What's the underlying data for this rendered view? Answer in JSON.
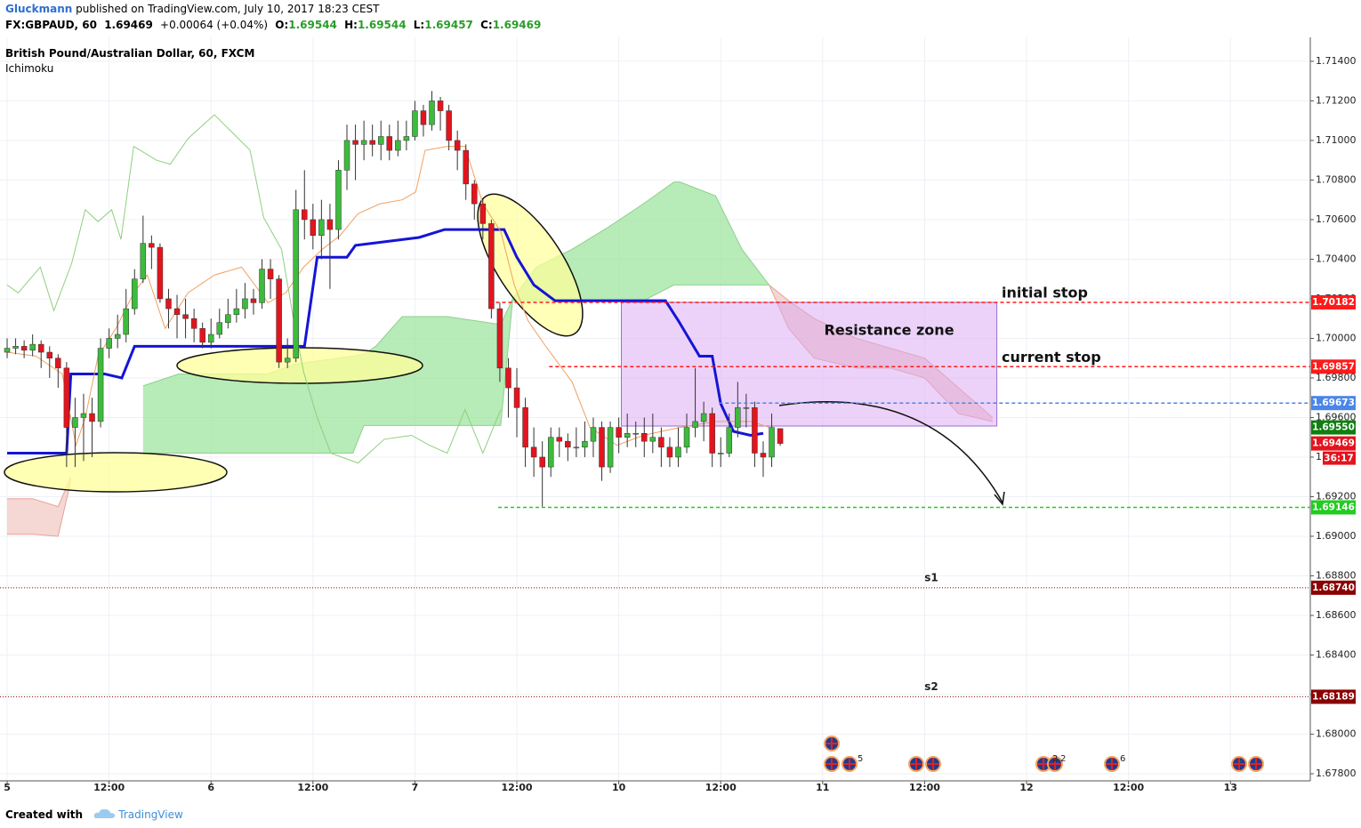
{
  "header": {
    "author": "Gluckmann",
    "published": "published on TradingView.com, July 10, 2017 18:23 CEST",
    "symbol": "FX:GBPAUD, 60",
    "last": "1.69469",
    "change": "+0.00064 (+0.04%)",
    "ohlc": [
      {
        "label": "O:",
        "value": "1.69544"
      },
      {
        "label": "H:",
        "value": "1.69544"
      },
      {
        "label": "L:",
        "value": "1.69457"
      },
      {
        "label": "C:",
        "value": "1.69469"
      }
    ]
  },
  "chart_data": {
    "type": "candlestick",
    "title": "British Pound/Australian Dollar, 60, FXCM",
    "indicator": "Ichimoku",
    "up_color": "#3dbb3d",
    "down_color": "#e3141e",
    "grid": true,
    "xlim": [
      -0.84,
      153.4
    ],
    "ylim": [
      1.67764,
      1.71521
    ],
    "xticks": [
      {
        "value": 0,
        "label": "5"
      },
      {
        "value": 12,
        "label": "12:00"
      },
      {
        "value": 24,
        "label": "6"
      },
      {
        "value": 36,
        "label": "12:00"
      },
      {
        "value": 48,
        "label": "7"
      },
      {
        "value": 60,
        "label": "12:00"
      },
      {
        "value": 72,
        "label": "10"
      },
      {
        "value": 84,
        "label": "12:00"
      },
      {
        "value": 96,
        "label": "11"
      },
      {
        "value": 108,
        "label": "12:00"
      },
      {
        "value": 120,
        "label": "12"
      },
      {
        "value": 132,
        "label": "12:00"
      },
      {
        "value": 144,
        "label": "13"
      }
    ],
    "yticks": [
      {
        "value": 1.678,
        "label": "1.67800"
      },
      {
        "value": 1.68,
        "label": "1.68000"
      },
      {
        "value": 1.682,
        "label": "1.68200"
      },
      {
        "value": 1.684,
        "label": "1.68400"
      },
      {
        "value": 1.686,
        "label": "1.68600"
      },
      {
        "value": 1.688,
        "label": "1.68800"
      },
      {
        "value": 1.69,
        "label": "1.69000"
      },
      {
        "value": 1.692,
        "label": "1.69200"
      },
      {
        "value": 1.694,
        "label": "1.69400"
      },
      {
        "value": 1.696,
        "label": "1.69600"
      },
      {
        "value": 1.698,
        "label": "1.69800"
      },
      {
        "value": 1.7,
        "label": "1.70000"
      },
      {
        "value": 1.702,
        "label": "1.70200"
      },
      {
        "value": 1.704,
        "label": "1.70400"
      },
      {
        "value": 1.706,
        "label": "1.70600"
      },
      {
        "value": 1.708,
        "label": "1.70800"
      },
      {
        "value": 1.71,
        "label": "1.71000"
      },
      {
        "value": 1.712,
        "label": "1.71200"
      },
      {
        "value": 1.714,
        "label": "1.71400"
      }
    ],
    "x": [
      0,
      1,
      2,
      3,
      4,
      5,
      6,
      7,
      8,
      9,
      10,
      11,
      12,
      13,
      14,
      15,
      16,
      17,
      18,
      19,
      20,
      21,
      22,
      23,
      24,
      25,
      26,
      27,
      28,
      29,
      30,
      31,
      32,
      33,
      34,
      35,
      36,
      37,
      38,
      39,
      40,
      41,
      42,
      43,
      44,
      45,
      46,
      47,
      48,
      49,
      50,
      51,
      52,
      53,
      54,
      55,
      56,
      57,
      58,
      59,
      60,
      61,
      62,
      63,
      64,
      65,
      66,
      67,
      68,
      69,
      70,
      71,
      72,
      73,
      74,
      75,
      76,
      77,
      78,
      79,
      80,
      81,
      82,
      83,
      84,
      85,
      86,
      87,
      88,
      89,
      90,
      91
    ],
    "open": [
      1.6993,
      1.6995,
      1.6996,
      1.6994,
      1.6997,
      1.6993,
      1.699,
      1.6985,
      1.6955,
      1.696,
      1.6962,
      1.6958,
      1.6995,
      1.7,
      1.7002,
      1.7015,
      1.703,
      1.7048,
      1.7046,
      1.702,
      1.7015,
      1.7012,
      1.701,
      1.7005,
      1.6998,
      1.7002,
      1.7008,
      1.7012,
      1.7015,
      1.702,
      1.7018,
      1.7035,
      1.703,
      1.6988,
      1.699,
      1.7065,
      1.706,
      1.7052,
      1.706,
      1.7055,
      1.7085,
      1.71,
      1.7098,
      1.71,
      1.7098,
      1.7102,
      1.7095,
      1.71,
      1.7102,
      1.7115,
      1.7108,
      1.712,
      1.7115,
      1.71,
      1.7095,
      1.7078,
      1.7068,
      1.7058,
      1.7015,
      1.6985,
      1.6975,
      1.6965,
      1.6945,
      1.694,
      1.6935,
      1.695,
      1.6948,
      1.6945,
      1.6945,
      1.6948,
      1.6955,
      1.6935,
      1.6955,
      1.695,
      1.6952,
      1.6952,
      1.6948,
      1.695,
      1.6945,
      1.694,
      1.6945,
      1.6955,
      1.6958,
      1.6962,
      1.6942,
      1.6942,
      1.6955,
      1.6965,
      1.6965,
      1.6942,
      1.694,
      1.69544
    ],
    "high": [
      1.7,
      1.7,
      1.6999,
      1.7002,
      1.6999,
      1.6996,
      1.6992,
      1.6988,
      1.697,
      1.6972,
      1.697,
      1.7,
      1.7005,
      1.7012,
      1.7025,
      1.7035,
      1.7062,
      1.7052,
      1.7048,
      1.7025,
      1.7022,
      1.702,
      1.7015,
      1.7008,
      1.701,
      1.7015,
      1.702,
      1.7025,
      1.7028,
      1.7025,
      1.704,
      1.704,
      1.7032,
      1.7,
      1.7075,
      1.7085,
      1.7068,
      1.707,
      1.7068,
      1.709,
      1.7108,
      1.7108,
      1.711,
      1.7108,
      1.711,
      1.7108,
      1.711,
      1.711,
      1.712,
      1.7118,
      1.7125,
      1.7122,
      1.7118,
      1.7105,
      1.7098,
      1.708,
      1.707,
      1.706,
      1.7018,
      1.699,
      1.6985,
      1.697,
      1.6955,
      1.6948,
      1.6955,
      1.6955,
      1.6952,
      1.6955,
      1.6958,
      1.696,
      1.6958,
      1.6958,
      1.696,
      1.6962,
      1.6958,
      1.696,
      1.6962,
      1.6955,
      1.695,
      1.6955,
      1.6962,
      1.6985,
      1.6968,
      1.6965,
      1.695,
      1.6962,
      1.6978,
      1.6972,
      1.6968,
      1.6948,
      1.6962,
      1.69544
    ],
    "low": [
      1.699,
      1.6992,
      1.699,
      1.6991,
      1.6985,
      1.698,
      1.6975,
      1.6935,
      1.6935,
      1.6938,
      1.694,
      1.6955,
      1.699,
      1.6995,
      1.6998,
      1.7012,
      1.7028,
      1.7035,
      1.7018,
      1.7005,
      1.7,
      1.7,
      1.6998,
      1.6995,
      1.6995,
      1.7,
      1.7005,
      1.7008,
      1.701,
      1.7012,
      1.7015,
      1.702,
      1.6985,
      1.6985,
      1.6988,
      1.705,
      1.7045,
      1.704,
      1.7025,
      1.705,
      1.7075,
      1.708,
      1.709,
      1.7092,
      1.709,
      1.709,
      1.7092,
      1.7095,
      1.71,
      1.7102,
      1.7105,
      1.7105,
      1.7095,
      1.7085,
      1.707,
      1.706,
      1.705,
      1.701,
      1.6978,
      1.696,
      1.695,
      1.6935,
      1.693,
      1.6915,
      1.693,
      1.694,
      1.6938,
      1.694,
      1.694,
      1.694,
      1.6928,
      1.6932,
      1.6942,
      1.6945,
      1.6945,
      1.694,
      1.6942,
      1.6935,
      1.6935,
      1.6935,
      1.6942,
      1.695,
      1.6948,
      1.6935,
      1.6935,
      1.694,
      1.695,
      1.6955,
      1.6935,
      1.693,
      1.6935,
      1.69457
    ],
    "close": [
      1.6995,
      1.6996,
      1.6994,
      1.6997,
      1.6993,
      1.699,
      1.6985,
      1.6955,
      1.696,
      1.6962,
      1.6958,
      1.6995,
      1.7,
      1.7002,
      1.7015,
      1.703,
      1.7048,
      1.7046,
      1.702,
      1.7015,
      1.7012,
      1.701,
      1.7005,
      1.6998,
      1.7002,
      1.7008,
      1.7012,
      1.7015,
      1.702,
      1.7018,
      1.7035,
      1.703,
      1.6988,
      1.699,
      1.7065,
      1.706,
      1.7052,
      1.706,
      1.7055,
      1.7085,
      1.71,
      1.7098,
      1.71,
      1.7098,
      1.7102,
      1.7095,
      1.71,
      1.7102,
      1.7115,
      1.7108,
      1.712,
      1.7115,
      1.71,
      1.7095,
      1.7078,
      1.7068,
      1.7058,
      1.7015,
      1.6985,
      1.6975,
      1.6965,
      1.6945,
      1.694,
      1.6935,
      1.695,
      1.6948,
      1.6945,
      1.6945,
      1.6948,
      1.6955,
      1.6935,
      1.6955,
      1.695,
      1.6952,
      1.6952,
      1.6948,
      1.695,
      1.6945,
      1.694,
      1.6945,
      1.6955,
      1.6958,
      1.6962,
      1.6942,
      1.6942,
      1.6955,
      1.6965,
      1.6965,
      1.6942,
      1.694,
      1.6955,
      1.69469
    ],
    "countdown": "36:17",
    "clouds": [
      {
        "color": "#9fe49f",
        "line": "#8fd08f",
        "x": [
          16,
          20.2,
          30.7,
          33.9,
          40.7,
          42,
          43.4,
          46.5,
          51.8,
          58.1,
          59.5,
          62.3,
          66.5,
          70.7,
          74.9,
          78.5,
          79.2,
          83.4,
          86.5,
          89.7
        ],
        "upper": [
          1.6976,
          1.6982,
          1.6982,
          1.6987,
          1.6991,
          1.6992,
          1.6996,
          1.7011,
          1.7011,
          1.7007,
          1.702,
          1.7036,
          1.7045,
          1.7056,
          1.7068,
          1.7079,
          1.7079,
          1.7072,
          1.7045,
          1.7027
        ],
        "lower": [
          1.6942,
          1.6942,
          1.6942,
          1.6942,
          1.6942,
          1.6956,
          1.6956,
          1.6956,
          1.6956,
          1.6956,
          1.7019,
          1.7019,
          1.7019,
          1.7019,
          1.7019,
          1.7027,
          1.7027,
          1.7027,
          1.7027,
          1.7027
        ]
      },
      {
        "color": "#f2c9c4",
        "line": "#e6a398",
        "x": [
          0,
          3,
          6,
          7.5
        ],
        "upper": [
          1.6919,
          1.6919,
          1.6915,
          1.693
        ],
        "lower": [
          1.6901,
          1.6901,
          1.69,
          1.6928
        ]
      },
      {
        "color": "#f2c9c4",
        "line": "#e6a398",
        "x": [
          89.7,
          92,
          95,
          100,
          104,
          108,
          112,
          116
        ],
        "upper": [
          1.7027,
          1.7019,
          1.701,
          1.7,
          1.6995,
          1.699,
          1.6975,
          1.696
        ],
        "lower": [
          1.7027,
          1.7005,
          1.699,
          1.6985,
          1.6985,
          1.698,
          1.6962,
          1.6958
        ]
      }
    ],
    "lines": [
      {
        "color": "#1414d6",
        "width": 3,
        "x": [
          0,
          7,
          7.5,
          11.5,
          13.5,
          15,
          35,
          36.5,
          40,
          41,
          48.5,
          51.5,
          58.5,
          60,
          62,
          64.5,
          77.5,
          79,
          81.5,
          83,
          84,
          85.5,
          87.5,
          89
        ],
        "values": [
          1.6942,
          1.6942,
          1.6982,
          1.6982,
          1.698,
          1.6996,
          1.6996,
          1.7041,
          1.7041,
          1.7047,
          1.7051,
          1.7055,
          1.7055,
          1.7041,
          1.7027,
          1.7019,
          1.7019,
          1.7009,
          1.6991,
          1.6991,
          1.6967,
          1.6953,
          1.6951,
          1.6952
        ]
      },
      {
        "color": "#f0a060",
        "width": 1,
        "x": [
          0,
          3.4,
          6.5,
          8.1,
          9.2,
          10.7,
          12.8,
          14.9,
          16.5,
          18.6,
          21.3,
          24.4,
          27.6,
          30.7,
          32.8,
          34.9,
          37.1,
          39.2,
          41.3,
          43.9,
          46.5,
          48.1,
          49.2,
          51.8,
          53.9,
          56,
          58.1,
          59.7,
          61.3,
          63.4,
          66.5,
          68.6,
          71.8,
          74.9,
          79.2,
          83.4,
          87.6,
          89.7
        ],
        "values": [
          1.6993,
          1.6991,
          1.6982,
          1.6946,
          1.696,
          1.6991,
          1.7005,
          1.7023,
          1.7032,
          1.7005,
          1.7023,
          1.7032,
          1.7036,
          1.7018,
          1.7023,
          1.7036,
          1.7045,
          1.7052,
          1.7063,
          1.7068,
          1.707,
          1.7074,
          1.7095,
          1.7097,
          1.7097,
          1.7068,
          1.7054,
          1.7027,
          1.7009,
          1.6996,
          1.6978,
          1.6955,
          1.6946,
          1.6951,
          1.6955,
          1.6958,
          1.6958,
          1.6955
        ]
      },
      {
        "color": "#8fcf7f",
        "width": 1,
        "x": [
          0,
          1.3,
          3.9,
          5.5,
          7.6,
          9.2,
          10.7,
          12.3,
          13.4,
          14.9,
          17.6,
          19.2,
          21.3,
          24.4,
          26.5,
          28.6,
          30.2,
          32.3,
          33.9,
          34.9,
          36.5,
          38.1,
          41.3,
          44.4,
          47.6,
          49.7,
          51.8,
          53.9,
          56,
          58.1
        ],
        "values": [
          1.7027,
          1.7023,
          1.7036,
          1.7014,
          1.7038,
          1.7065,
          1.7059,
          1.7065,
          1.705,
          1.7097,
          1.709,
          1.7088,
          1.7101,
          1.7113,
          1.7104,
          1.7095,
          1.7061,
          1.7045,
          1.7005,
          1.6983,
          1.696,
          1.6942,
          1.6937,
          1.6949,
          1.6951,
          1.6946,
          1.6942,
          1.6964,
          1.6942,
          1.6964
        ]
      }
    ],
    "zone": {
      "label": "Resistance zone",
      "x": [
        72.3,
        116.5
      ],
      "y": [
        1.69557,
        1.70182
      ],
      "color": "#d9a6f2"
    },
    "levels": [
      {
        "name": "initial stop",
        "value": 1.70182,
        "color": "#ff1a1a",
        "style": "dashed",
        "from": 56.8
      },
      {
        "name": "current stop",
        "value": 1.69857,
        "color": "#ff1a1a",
        "style": "dashed",
        "from": 63.8
      },
      {
        "value": 1.69673,
        "color": "#4a86e8",
        "style": "dashed",
        "from": 83.8
      },
      {
        "value": 1.69146,
        "color": "#22cc22",
        "style": "dashed",
        "from": 57.8
      },
      {
        "name": "s1",
        "value": 1.6874,
        "label": "1.68740",
        "color": "#8b0000",
        "style": "dotted"
      },
      {
        "name": "s2",
        "value": 1.68189,
        "color": "#8b0000",
        "style": "dotted"
      }
    ],
    "axis_markers": [
      {
        "value": 1.6955,
        "label": "1.69550",
        "color": "#0f7f0f"
      }
    ],
    "events": [
      "5",
      "2",
      "2",
      "6"
    ]
  },
  "footer": {
    "created": "Created with",
    "brand": "TradingView"
  }
}
